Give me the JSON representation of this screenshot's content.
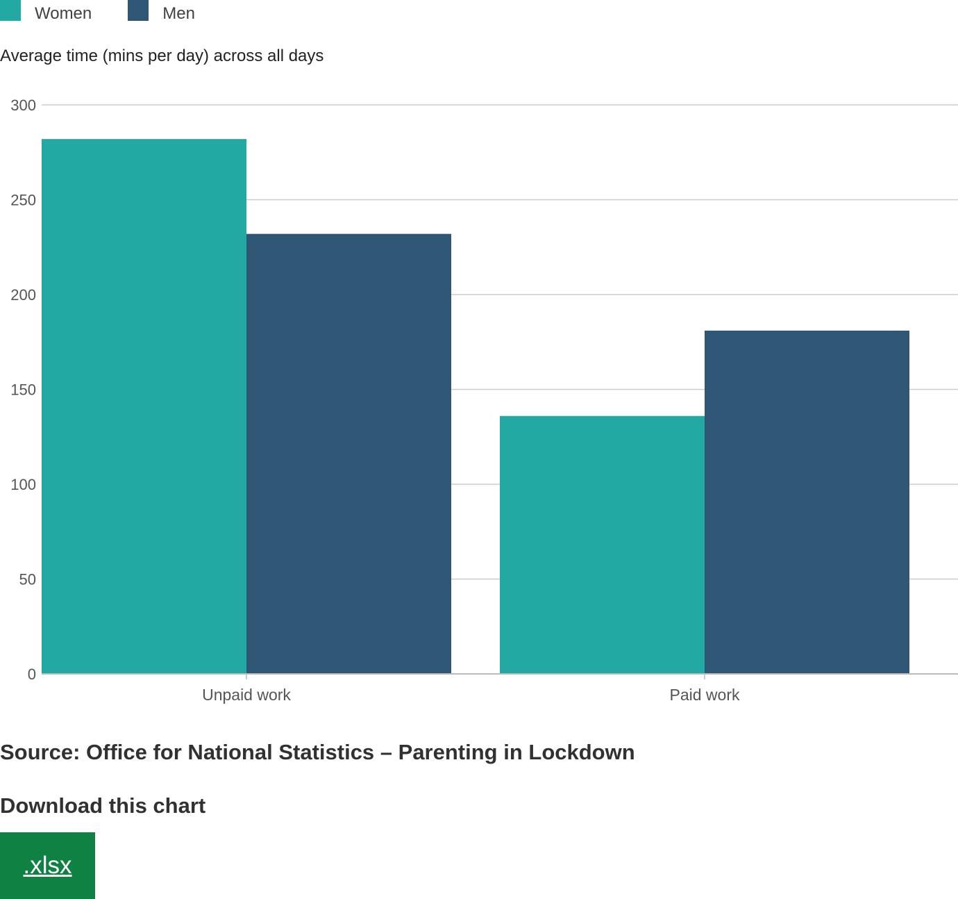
{
  "colors": {
    "women": "#22a9a3",
    "men": "#2f5675",
    "grid": "#cccccc",
    "axis": "#bbbbbb",
    "tick_text": "#555555",
    "button": "#0f8243"
  },
  "legend": {
    "items": [
      {
        "label": "Women",
        "color": "#22a9a3"
      },
      {
        "label": "Men",
        "color": "#2f5675"
      }
    ]
  },
  "chart_data": {
    "type": "bar",
    "ylabel": "Average time (mins per day) across all days",
    "categories": [
      "Unpaid work",
      "Paid work"
    ],
    "series": [
      {
        "name": "Women",
        "values": [
          282,
          136
        ],
        "color": "#22a9a3"
      },
      {
        "name": "Men",
        "values": [
          232,
          181
        ],
        "color": "#2f5675"
      }
    ],
    "ylim": [
      0,
      300
    ],
    "yticks": [
      0,
      50,
      100,
      150,
      200,
      250,
      300
    ],
    "grid": true,
    "legend_position": "top-left"
  },
  "source_text": "Source: Office for National Statistics – Parenting in Lockdown",
  "download": {
    "heading": "Download this chart",
    "button_label": ".xlsx"
  }
}
